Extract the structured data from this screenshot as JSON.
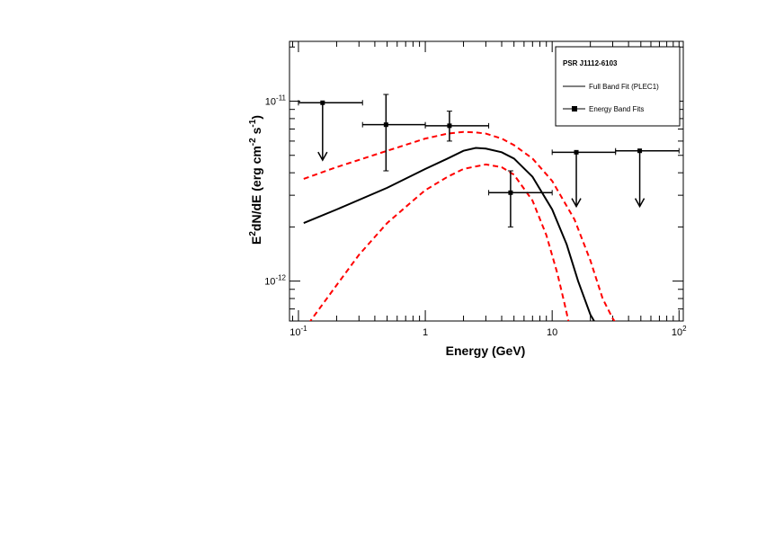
{
  "chart_data": {
    "type": "line",
    "title": "",
    "xlabel": "Energy (GeV)",
    "ylabel": {
      "base": "E",
      "sup1": "2",
      "mid": "dN/dE (erg cm",
      "sup2": "-2",
      "mid2": " s",
      "sup3": "-1",
      "end": ")"
    },
    "xscale": "log",
    "yscale": "log",
    "xlim": [
      0.085,
      108
    ],
    "ylim": [
      6e-13,
      2.15e-11
    ],
    "x_ticks": [
      {
        "value": 0.1,
        "base": "10",
        "exp": "-1"
      },
      {
        "value": 1,
        "base": "1",
        "exp": ""
      },
      {
        "value": 10,
        "base": "10",
        "exp": ""
      },
      {
        "value": 100,
        "base": "10",
        "exp": "2"
      }
    ],
    "y_ticks": [
      {
        "value": 1e-11,
        "base": "10",
        "exp": "-11"
      },
      {
        "value": 1e-12,
        "base": "10",
        "exp": "-12"
      }
    ],
    "legend": {
      "title": "PSR J1112-6103",
      "placement": "top-right",
      "entries": [
        "Full Band Fit (PLEC1)",
        "Energy Band Fits"
      ]
    },
    "model": {
      "name": "Full Band Fit (PLEC1)",
      "color": "#000000",
      "style": "solid",
      "x": [
        0.11,
        0.2,
        0.5,
        1.0,
        1.5,
        2.0,
        2.5,
        3.0,
        4.0,
        5.0,
        7.0,
        10.0,
        13.0,
        16.0,
        20.0,
        22.0
      ],
      "y": [
        2.1e-12,
        2.5e-12,
        3.3e-12,
        4.2e-12,
        4.8e-12,
        5.3e-12,
        5.5e-12,
        5.45e-12,
        5.2e-12,
        4.8e-12,
        3.8e-12,
        2.5e-12,
        1.6e-12,
        1e-12,
        6.5e-13,
        5.8e-13
      ]
    },
    "band_upper": {
      "color": "#ff0000",
      "style": "dashed",
      "x": [
        0.11,
        0.2,
        0.5,
        1.0,
        1.5,
        2.0,
        2.5,
        3.0,
        4.0,
        5.0,
        7.0,
        10.0,
        15.0,
        20.0,
        25.0,
        30.0,
        32.0
      ],
      "y": [
        3.7e-12,
        4.3e-12,
        5.3e-12,
        6.2e-12,
        6.6e-12,
        6.75e-12,
        6.7e-12,
        6.6e-12,
        6.2e-12,
        5.7e-12,
        4.8e-12,
        3.6e-12,
        2.2e-12,
        1.3e-12,
        8e-13,
        6.2e-13,
        5.8e-13
      ]
    },
    "band_lower": {
      "color": "#ff0000",
      "style": "dashed",
      "x": [
        0.12,
        0.15,
        0.2,
        0.3,
        0.5,
        0.8,
        1.0,
        1.5,
        2.0,
        3.0,
        4.0,
        5.0,
        7.0,
        9.0,
        11.0,
        12.5,
        13.5
      ],
      "y": [
        5.8e-13,
        7.2e-13,
        9.5e-13,
        1.4e-12,
        2.1e-12,
        2.8e-12,
        3.2e-12,
        3.8e-12,
        4.2e-12,
        4.45e-12,
        4.3e-12,
        3.9e-12,
        2.8e-12,
        1.8e-12,
        1.1e-12,
        7.5e-13,
        5.9e-13
      ]
    },
    "band_points": {
      "name": "Energy Band Fits",
      "color": "#000000",
      "points": [
        {
          "x": 0.155,
          "x_lo": 0.1,
          "x_hi": 0.32,
          "y": 9.8e-12,
          "upper_limit": true,
          "arrow_to": 4.7e-12
        },
        {
          "x": 0.49,
          "x_lo": 0.32,
          "x_hi": 1.0,
          "y": 7.4e-12,
          "y_lo": 4.1e-12,
          "y_hi": 1.09e-11
        },
        {
          "x": 1.55,
          "x_lo": 1.0,
          "x_hi": 3.16,
          "y": 7.3e-12,
          "y_lo": 6e-12,
          "y_hi": 8.8e-12
        },
        {
          "x": 4.7,
          "x_lo": 3.16,
          "x_hi": 10.0,
          "y": 3.1e-12,
          "y_lo": 2e-12,
          "y_hi": 4.1e-12
        },
        {
          "x": 15.5,
          "x_lo": 10.0,
          "x_hi": 31.6,
          "y": 5.2e-12,
          "upper_limit": true,
          "arrow_to": 2.6e-12
        },
        {
          "x": 49.0,
          "x_lo": 31.6,
          "x_hi": 100.0,
          "y": 5.3e-12,
          "upper_limit": true,
          "arrow_to": 2.6e-12
        }
      ]
    }
  }
}
